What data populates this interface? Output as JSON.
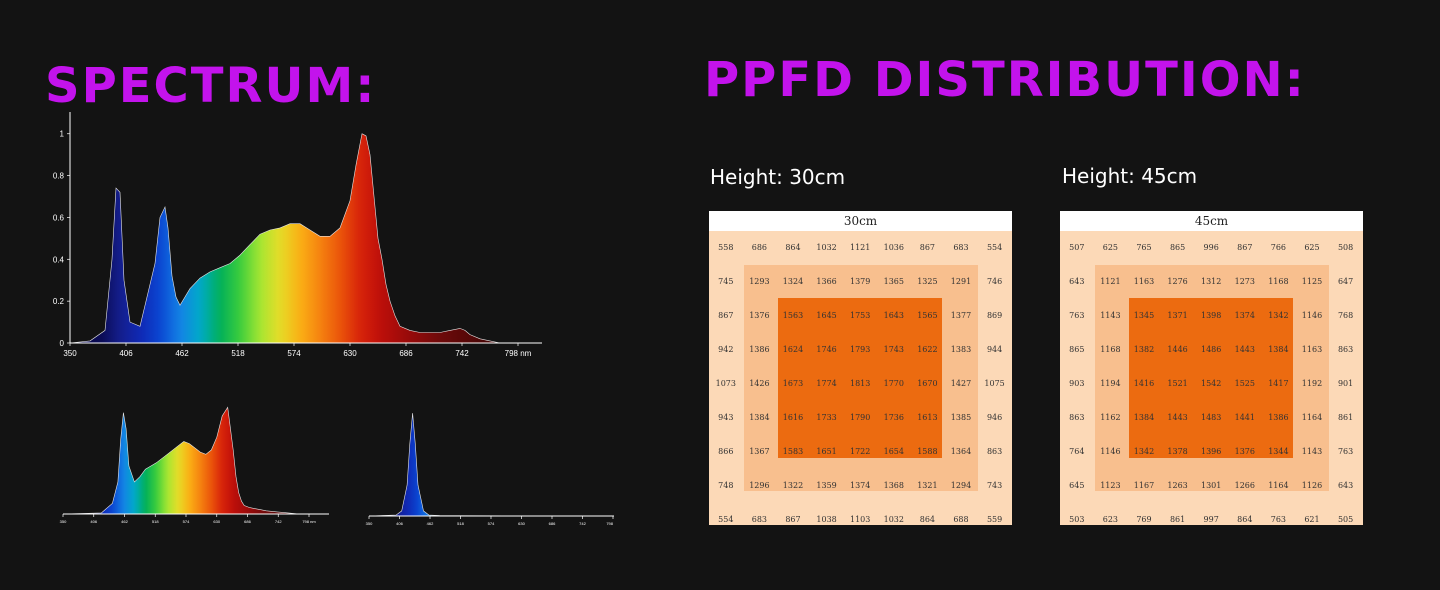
{
  "page": {
    "background": "#131313",
    "accent": "#c313ec"
  },
  "spectrum_title": "SPECTRUM:",
  "ppfd_title": "PPFD DISTRIBUTION:",
  "chart_data": [
    {
      "type": "area",
      "x": [
        350,
        370,
        385,
        392,
        396,
        400,
        404,
        410,
        420,
        435,
        440,
        445,
        448,
        452,
        456,
        460,
        470,
        480,
        490,
        500,
        510,
        520,
        530,
        540,
        550,
        560,
        570,
        580,
        590,
        600,
        610,
        620,
        630,
        636,
        642,
        646,
        650,
        654,
        656,
        658,
        662,
        666,
        670,
        675,
        680,
        690,
        700,
        710,
        720,
        730,
        740,
        745,
        750,
        760,
        770,
        780
      ],
      "y": [
        0,
        0.01,
        0.06,
        0.4,
        0.74,
        0.72,
        0.3,
        0.1,
        0.08,
        0.38,
        0.6,
        0.65,
        0.55,
        0.32,
        0.22,
        0.18,
        0.26,
        0.31,
        0.34,
        0.36,
        0.38,
        0.42,
        0.47,
        0.52,
        0.54,
        0.55,
        0.57,
        0.57,
        0.54,
        0.51,
        0.51,
        0.55,
        0.68,
        0.85,
        1.0,
        0.99,
        0.9,
        0.7,
        0.6,
        0.5,
        0.4,
        0.28,
        0.2,
        0.13,
        0.08,
        0.06,
        0.05,
        0.05,
        0.05,
        0.06,
        0.07,
        0.06,
        0.04,
        0.02,
        0.01,
        0
      ],
      "xticks": [
        350,
        406,
        462,
        518,
        574,
        630,
        686,
        742,
        798
      ],
      "yticks": [
        "0",
        "0.2",
        "0.4",
        "0.6",
        "0.8",
        "1"
      ],
      "xunit": "nm",
      "ylim": [
        0,
        1.08
      ],
      "xlim": [
        350,
        798
      ]
    },
    {
      "type": "area",
      "x": [
        350,
        420,
        440,
        450,
        455,
        460,
        465,
        470,
        480,
        490,
        500,
        510,
        520,
        540,
        560,
        570,
        580,
        600,
        610,
        620,
        630,
        640,
        650,
        660,
        665,
        670,
        675,
        680,
        690,
        700,
        710,
        720,
        740,
        760,
        780
      ],
      "y": [
        0,
        0.01,
        0.1,
        0.3,
        0.7,
        0.95,
        0.8,
        0.45,
        0.3,
        0.35,
        0.42,
        0.45,
        0.48,
        0.56,
        0.64,
        0.68,
        0.66,
        0.58,
        0.56,
        0.6,
        0.72,
        0.92,
        1.0,
        0.6,
        0.35,
        0.2,
        0.12,
        0.08,
        0.06,
        0.05,
        0.04,
        0.03,
        0.02,
        0.01,
        0
      ],
      "xticks": [
        350,
        406,
        462,
        518,
        574,
        630,
        686,
        742,
        798
      ],
      "xunit": "nm",
      "ylim": [
        0,
        1.05
      ],
      "xlim": [
        350,
        798
      ]
    },
    {
      "type": "area",
      "x": [
        350,
        400,
        410,
        420,
        425,
        430,
        435,
        440,
        450,
        460,
        480,
        520,
        600,
        798
      ],
      "y": [
        0,
        0.01,
        0.05,
        0.3,
        0.7,
        1.0,
        0.7,
        0.3,
        0.05,
        0.01,
        0.005,
        0.003,
        0.002,
        0
      ],
      "xticks": [
        350,
        406,
        462,
        518,
        574,
        630,
        686,
        742,
        798
      ],
      "xunit": "nm",
      "ylim": [
        0,
        1.05
      ],
      "xlim": [
        350,
        798
      ]
    },
    {
      "type": "heatmap",
      "header": "30cm",
      "rows": [
        [
          558,
          686,
          864,
          1032,
          1121,
          1036,
          867,
          683,
          554
        ],
        [
          745,
          1293,
          1324,
          1366,
          1379,
          1365,
          1325,
          1291,
          746
        ],
        [
          867,
          1376,
          1563,
          1645,
          1753,
          1643,
          1565,
          1377,
          869
        ],
        [
          942,
          1386,
          1624,
          1746,
          1793,
          1743,
          1622,
          1383,
          944
        ],
        [
          1073,
          1426,
          1673,
          1774,
          1813,
          1770,
          1670,
          1427,
          1075
        ],
        [
          943,
          1384,
          1616,
          1733,
          1790,
          1736,
          1613,
          1385,
          946
        ],
        [
          866,
          1367,
          1583,
          1651,
          1722,
          1654,
          1588,
          1364,
          863
        ],
        [
          748,
          1296,
          1322,
          1359,
          1374,
          1368,
          1321,
          1294,
          743
        ],
        [
          554,
          683,
          867,
          1038,
          1103,
          1032,
          864,
          688,
          559
        ]
      ]
    },
    {
      "type": "heatmap",
      "header": "45cm",
      "rows": [
        [
          507,
          625,
          765,
          865,
          996,
          867,
          766,
          625,
          508
        ],
        [
          643,
          1121,
          1163,
          1276,
          1312,
          1273,
          1168,
          1125,
          647
        ],
        [
          763,
          1143,
          1345,
          1371,
          1398,
          1374,
          1342,
          1146,
          768
        ],
        [
          865,
          1168,
          1382,
          1446,
          1486,
          1443,
          1384,
          1163,
          863
        ],
        [
          903,
          1194,
          1416,
          1521,
          1542,
          1525,
          1417,
          1192,
          901
        ],
        [
          863,
          1162,
          1384,
          1443,
          1483,
          1441,
          1386,
          1164,
          861
        ],
        [
          764,
          1146,
          1342,
          1378,
          1396,
          1376,
          1344,
          1143,
          763
        ],
        [
          645,
          1123,
          1167,
          1263,
          1301,
          1266,
          1164,
          1126,
          643
        ],
        [
          503,
          623,
          769,
          861,
          997,
          864,
          763,
          621,
          505
        ]
      ]
    }
  ],
  "height_labels": [
    "Height: 30cm",
    "Height: 45cm"
  ],
  "zone_colors": {
    "outer": "#fcd9b7",
    "middle": "#f8bf8e",
    "inner": "#ec6b10"
  }
}
